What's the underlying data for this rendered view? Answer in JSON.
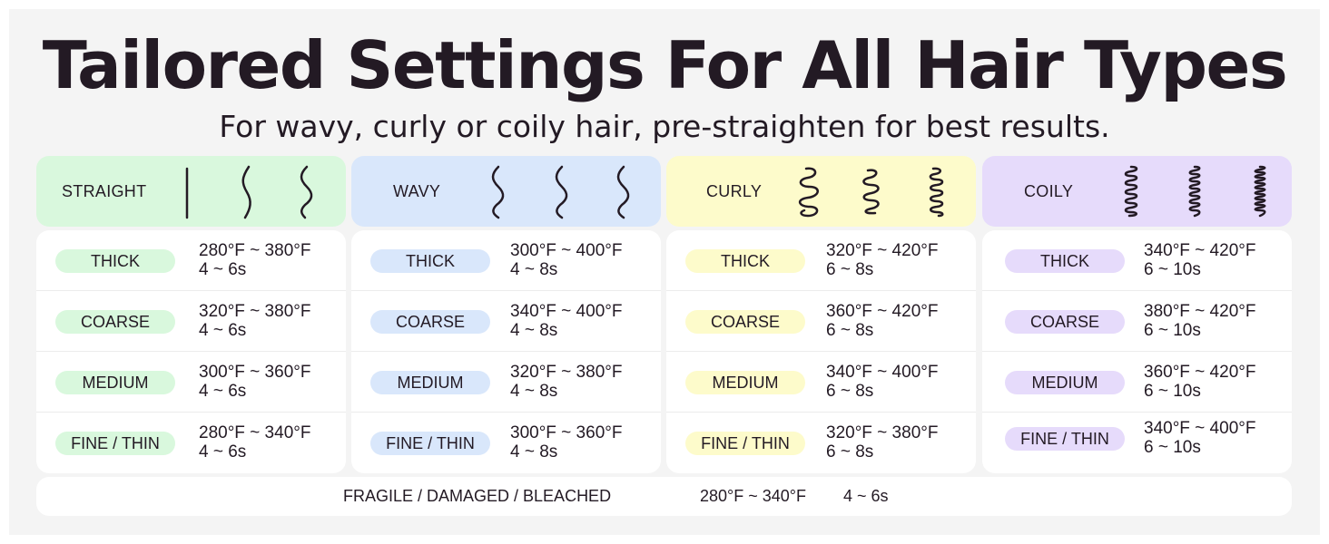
{
  "title": "Tailored Settings For All Hair Types",
  "subtitle": "For wavy, curly or coily hair, pre-straighten for best results.",
  "columns": [
    {
      "name": "STRAIGHT",
      "header_color": "#d9f8dd",
      "pill_color": "#d9f8dd",
      "icon": "straight-hair-icon",
      "rows": [
        {
          "label": "THICK",
          "temp": "280°F ~ 380°F",
          "time": "4 ~ 6s"
        },
        {
          "label": "COARSE",
          "temp": "320°F ~ 380°F",
          "time": "4 ~ 6s"
        },
        {
          "label": "MEDIUM",
          "temp": "300°F ~ 360°F",
          "time": "4 ~ 6s"
        },
        {
          "label": "FINE / THIN",
          "temp": "280°F ~ 340°F",
          "time": "4 ~ 6s"
        }
      ]
    },
    {
      "name": "WAVY",
      "header_color": "#d9e7fb",
      "pill_color": "#d9e7fb",
      "icon": "wavy-hair-icon",
      "rows": [
        {
          "label": "THICK",
          "temp": "300°F ~ 400°F",
          "time": "4 ~ 8s"
        },
        {
          "label": "COARSE",
          "temp": "340°F ~ 400°F",
          "time": "4 ~ 8s"
        },
        {
          "label": "MEDIUM",
          "temp": "320°F ~ 380°F",
          "time": "4 ~ 8s"
        },
        {
          "label": "FINE / THIN",
          "temp": "300°F ~ 360°F",
          "time": "4 ~ 8s"
        }
      ]
    },
    {
      "name": "CURLY",
      "header_color": "#fdfbcb",
      "pill_color": "#fdfbcb",
      "icon": "curly-hair-icon",
      "rows": [
        {
          "label": "THICK",
          "temp": "320°F ~ 420°F",
          "time": "6 ~ 8s"
        },
        {
          "label": "COARSE",
          "temp": "360°F ~ 420°F",
          "time": "6 ~ 8s"
        },
        {
          "label": "MEDIUM",
          "temp": "340°F ~ 400°F",
          "time": "6 ~ 8s"
        },
        {
          "label": "FINE / THIN",
          "temp": "320°F ~ 380°F",
          "time": "6 ~ 8s"
        }
      ]
    },
    {
      "name": "COILY",
      "header_color": "#e6dbfb",
      "pill_color": "#e6dbfb",
      "icon": "coily-hair-icon",
      "rows": [
        {
          "label": "THICK",
          "temp": "340°F ~ 420°F",
          "time": "6 ~ 10s"
        },
        {
          "label": "COARSE",
          "temp": "380°F ~ 420°F",
          "time": "6 ~ 10s"
        },
        {
          "label": "MEDIUM",
          "temp": "360°F ~ 420°F",
          "time": "6 ~ 10s"
        },
        {
          "label": "FINE / THIN",
          "temp": "340°F ~ 400°F",
          "time": "6 ~ 10s"
        }
      ]
    }
  ],
  "footer": {
    "label": "FRAGILE / DAMAGED / BLEACHED",
    "temp": "280°F ~ 340°F",
    "time": "4 ~ 6s"
  }
}
